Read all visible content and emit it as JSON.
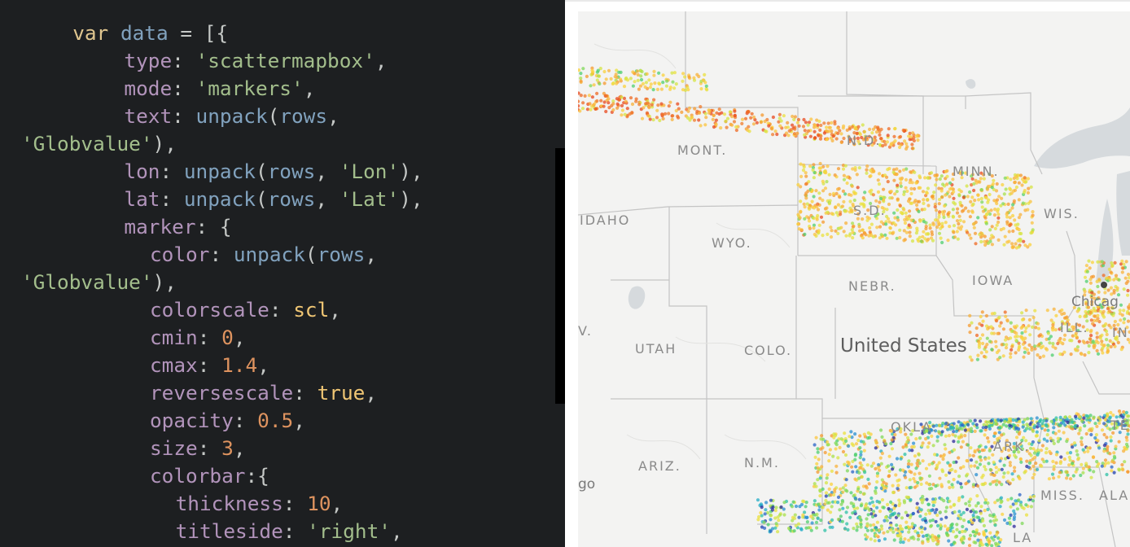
{
  "editor": {
    "lines": [
      {
        "indent": 2,
        "tokens": [
          {
            "t": "var",
            "c": "kw"
          },
          {
            "t": " "
          },
          {
            "t": "data",
            "c": "var"
          },
          {
            "t": " = [{",
            "c": "punc"
          }
        ]
      },
      {
        "indent": 4,
        "tokens": [
          {
            "t": "type",
            "c": "key"
          },
          {
            "t": ": ",
            "c": "punc"
          },
          {
            "t": "'scattermapbox'",
            "c": "str"
          },
          {
            "t": ",",
            "c": "punc"
          }
        ]
      },
      {
        "indent": 4,
        "tokens": [
          {
            "t": "mode",
            "c": "key"
          },
          {
            "t": ": ",
            "c": "punc"
          },
          {
            "t": "'markers'",
            "c": "str"
          },
          {
            "t": ",",
            "c": "punc"
          }
        ]
      },
      {
        "indent": 4,
        "tokens": [
          {
            "t": "text",
            "c": "key"
          },
          {
            "t": ": ",
            "c": "punc"
          },
          {
            "t": "unpack",
            "c": "fn"
          },
          {
            "t": "(",
            "c": "punc"
          },
          {
            "t": "rows",
            "c": "var"
          },
          {
            "t": ",",
            "c": "punc"
          }
        ]
      },
      {
        "indent": 0,
        "tokens": [
          {
            "t": "'Globvalue'",
            "c": "str"
          },
          {
            "t": "),",
            "c": "punc"
          }
        ]
      },
      {
        "indent": 4,
        "tokens": [
          {
            "t": "lon",
            "c": "key"
          },
          {
            "t": ": ",
            "c": "punc"
          },
          {
            "t": "unpack",
            "c": "fn"
          },
          {
            "t": "(",
            "c": "punc"
          },
          {
            "t": "rows",
            "c": "var"
          },
          {
            "t": ", ",
            "c": "punc"
          },
          {
            "t": "'Lon'",
            "c": "str"
          },
          {
            "t": "),",
            "c": "punc"
          }
        ]
      },
      {
        "indent": 4,
        "tokens": [
          {
            "t": "lat",
            "c": "key"
          },
          {
            "t": ": ",
            "c": "punc"
          },
          {
            "t": "unpack",
            "c": "fn"
          },
          {
            "t": "(",
            "c": "punc"
          },
          {
            "t": "rows",
            "c": "var"
          },
          {
            "t": ", ",
            "c": "punc"
          },
          {
            "t": "'Lat'",
            "c": "str"
          },
          {
            "t": "),",
            "c": "punc"
          }
        ]
      },
      {
        "indent": 4,
        "tokens": [
          {
            "t": "marker",
            "c": "key"
          },
          {
            "t": ": {",
            "c": "punc"
          }
        ]
      },
      {
        "indent": 5,
        "tokens": [
          {
            "t": "color",
            "c": "key"
          },
          {
            "t": ": ",
            "c": "punc"
          },
          {
            "t": "unpack",
            "c": "fn"
          },
          {
            "t": "(",
            "c": "punc"
          },
          {
            "t": "rows",
            "c": "var"
          },
          {
            "t": ",",
            "c": "punc"
          }
        ]
      },
      {
        "indent": 0,
        "tokens": [
          {
            "t": "'Globvalue'",
            "c": "str"
          },
          {
            "t": "),",
            "c": "punc"
          }
        ]
      },
      {
        "indent": 5,
        "tokens": [
          {
            "t": "colorscale",
            "c": "key"
          },
          {
            "t": ": ",
            "c": "punc"
          },
          {
            "t": "scl",
            "c": "ident"
          },
          {
            "t": ",",
            "c": "punc"
          }
        ]
      },
      {
        "indent": 5,
        "tokens": [
          {
            "t": "cmin",
            "c": "key"
          },
          {
            "t": ": ",
            "c": "punc"
          },
          {
            "t": "0",
            "c": "num"
          },
          {
            "t": ",",
            "c": "punc"
          }
        ]
      },
      {
        "indent": 5,
        "tokens": [
          {
            "t": "cmax",
            "c": "key"
          },
          {
            "t": ": ",
            "c": "punc"
          },
          {
            "t": "1.4",
            "c": "num"
          },
          {
            "t": ",",
            "c": "punc"
          }
        ]
      },
      {
        "indent": 5,
        "tokens": [
          {
            "t": "reversescale",
            "c": "key"
          },
          {
            "t": ": ",
            "c": "punc"
          },
          {
            "t": "true",
            "c": "bool"
          },
          {
            "t": ",",
            "c": "punc"
          }
        ]
      },
      {
        "indent": 5,
        "tokens": [
          {
            "t": "opacity",
            "c": "key"
          },
          {
            "t": ": ",
            "c": "punc"
          },
          {
            "t": "0.5",
            "c": "num"
          },
          {
            "t": ",",
            "c": "punc"
          }
        ]
      },
      {
        "indent": 5,
        "tokens": [
          {
            "t": "size",
            "c": "key"
          },
          {
            "t": ": ",
            "c": "punc"
          },
          {
            "t": "3",
            "c": "num"
          },
          {
            "t": ",",
            "c": "punc"
          }
        ]
      },
      {
        "indent": 5,
        "tokens": [
          {
            "t": "colorbar",
            "c": "key"
          },
          {
            "t": ":{",
            "c": "punc"
          }
        ]
      },
      {
        "indent": 6,
        "tokens": [
          {
            "t": "thickness",
            "c": "key"
          },
          {
            "t": ": ",
            "c": "punc"
          },
          {
            "t": "10",
            "c": "num"
          },
          {
            "t": ",",
            "c": "punc"
          }
        ]
      },
      {
        "indent": 6,
        "tokens": [
          {
            "t": "titleside",
            "c": "key"
          },
          {
            "t": ": ",
            "c": "punc"
          },
          {
            "t": "'right'",
            "c": "str"
          },
          {
            "t": ",",
            "c": "punc"
          }
        ]
      }
    ]
  },
  "map": {
    "labels": {
      "mont": "MONT.",
      "nd": "N.D.",
      "minn": "MINN.",
      "wis": "WIS.",
      "idaho": "IDAHO",
      "wyo": "WYO.",
      "sd": "S.D.",
      "nebr": "NEBR.",
      "iowa": "IOWA",
      "utah": "UTAH",
      "colo": "COLO.",
      "ill": "ILL.",
      "ind": "IN",
      "okla": "OKLA.",
      "ark": "ARK.",
      "tenn": "TE",
      "ariz": "ARIZ.",
      "nm": "N.M.",
      "miss": "MISS.",
      "ala": "ALA",
      "nev": "V.",
      "la": "LA"
    },
    "country": "United States",
    "cities": {
      "chicago": "Chicag",
      "sandiego": "go"
    },
    "colors": {
      "land": "#f3f3f2",
      "water": "#d6dadd",
      "border": "#c4c4c4",
      "scale_high": "#e8491d",
      "scale_mid": "#fbd23b",
      "scale_low": "#1f3fae"
    }
  }
}
